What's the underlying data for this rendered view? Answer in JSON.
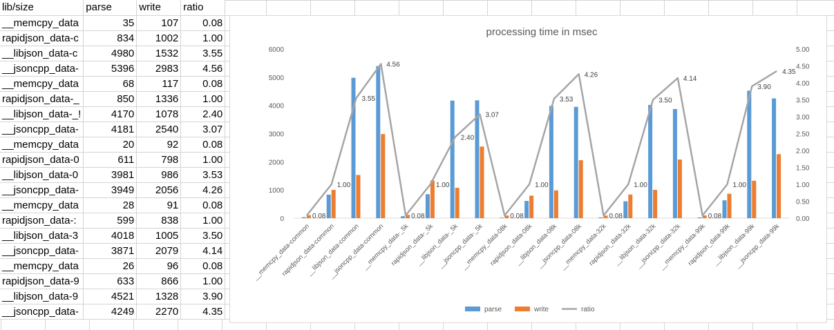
{
  "sheet": {
    "headers": [
      "lib/size",
      "parse",
      "write",
      "ratio"
    ],
    "rows": [
      [
        "__memcpy_data",
        "35",
        "107",
        "0.08"
      ],
      [
        "rapidjson_data-c",
        "834",
        "1002",
        "1.00"
      ],
      [
        "__libjson_data-c",
        "4980",
        "1532",
        "3.55"
      ],
      [
        "__jsoncpp_data-",
        "5396",
        "2983",
        "4.56"
      ],
      [
        "__memcpy_data",
        "68",
        "117",
        "0.08"
      ],
      [
        "rapidjson_data-_",
        "850",
        "1336",
        "1.00"
      ],
      [
        "__libjson_data-_!",
        "4170",
        "1078",
        "2.40"
      ],
      [
        "__jsoncpp_data-",
        "4181",
        "2540",
        "3.07"
      ],
      [
        "__memcpy_data",
        "20",
        "92",
        "0.08"
      ],
      [
        "rapidjson_data-0",
        "611",
        "798",
        "1.00"
      ],
      [
        "__libjson_data-0",
        "3981",
        "986",
        "3.53"
      ],
      [
        "__jsoncpp_data-",
        "3949",
        "2056",
        "4.26"
      ],
      [
        "__memcpy_data",
        "28",
        "91",
        "0.08"
      ],
      [
        "rapidjson_data-:",
        "599",
        "838",
        "1.00"
      ],
      [
        "__libjson_data-3",
        "4018",
        "1005",
        "3.50"
      ],
      [
        "__jsoncpp_data-",
        "3871",
        "2079",
        "4.14"
      ],
      [
        "__memcpy_data",
        "26",
        "96",
        "0.08"
      ],
      [
        "rapidjson_data-9",
        "633",
        "866",
        "1.00"
      ],
      [
        "__libjson_data-9",
        "4521",
        "1328",
        "3.90"
      ],
      [
        "__jsoncpp_data-",
        "4249",
        "2270",
        "4.35"
      ]
    ]
  },
  "chart_data": {
    "type": "bar",
    "title": "processing time in msec",
    "categories": [
      "__memcpy_data-common",
      "rapidjson_data-common",
      "__libjson_data-common",
      "__jsoncpp_data-common",
      "__memcpy_data-_5k",
      "rapidjson_data-_5k",
      "__libjson_data-_5k",
      "__jsoncpp_data-_5k",
      "__memcpy_data-08k",
      "rapidjson_data-08k",
      "__libjson_data-08k",
      "__jsoncpp_data-08k",
      "__memcpy_data-32k",
      "rapidjson_data-32k",
      "__libjson_data-32k",
      "__jsoncpp_data-32k",
      "__memcpy_data-99k",
      "rapidjson_data-99k",
      "__libjson_data-99k",
      "__jsoncpp_data-99k"
    ],
    "series": [
      {
        "name": "parse",
        "type": "bar",
        "axis": "left",
        "color": "#5b9bd5",
        "values": [
          35,
          834,
          4980,
          5396,
          68,
          850,
          4170,
          4181,
          20,
          611,
          3981,
          3949,
          28,
          599,
          4018,
          3871,
          26,
          633,
          4521,
          4249
        ]
      },
      {
        "name": "write",
        "type": "bar",
        "axis": "left",
        "color": "#ed7d31",
        "values": [
          107,
          1002,
          1532,
          2983,
          117,
          1336,
          1078,
          2540,
          92,
          798,
          986,
          2056,
          91,
          838,
          1005,
          2079,
          96,
          866,
          1328,
          2270
        ]
      },
      {
        "name": "ratio",
        "type": "line",
        "axis": "right",
        "color": "#a5a5a5",
        "values": [
          0.08,
          1.0,
          3.55,
          4.56,
          0.08,
          1.0,
          2.4,
          3.07,
          0.08,
          1.0,
          3.53,
          4.26,
          0.08,
          1.0,
          3.5,
          4.14,
          0.08,
          1.0,
          3.9,
          4.35
        ]
      }
    ],
    "data_labels": [
      "0.08",
      "1.00",
      "3.55",
      "4.56",
      "0.08",
      "1.00",
      "2.40",
      "3.07",
      "0.08",
      "1.00",
      "3.53",
      "4.26",
      "0.08",
      "1.00",
      "3.50",
      "4.14",
      "0.08",
      "1.00",
      "3.90",
      "4.35"
    ],
    "ylim_left": [
      0,
      6000
    ],
    "yticks_left": [
      "0",
      "1000",
      "2000",
      "3000",
      "4000",
      "5000",
      "6000"
    ],
    "ylim_right": [
      0,
      5
    ],
    "yticks_right": [
      "0.00",
      "0.50",
      "1.00",
      "1.50",
      "2.00",
      "2.50",
      "3.00",
      "3.50",
      "4.00",
      "4.50",
      "5.00"
    ],
    "legend_position": "bottom",
    "grid": false
  }
}
